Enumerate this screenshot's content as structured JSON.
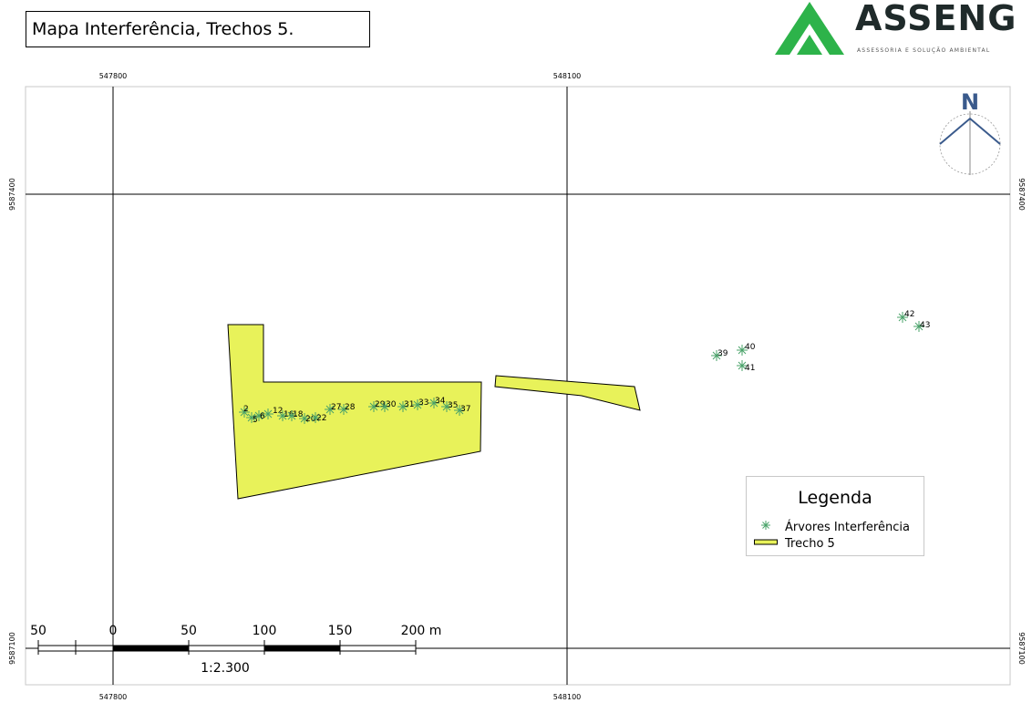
{
  "title": "Mapa Interferência, Trechos 5.",
  "logo": {
    "name": "ASSENG",
    "subtitle": "ASSESSORIA E SOLUÇÃO AMBIENTAL",
    "colors": {
      "green": "#2db34a",
      "dark": "#1f2a2a"
    }
  },
  "grid": {
    "x_labels": [
      "547800",
      "548100"
    ],
    "y_labels": [
      "9587400",
      "9587100"
    ]
  },
  "north_arrow": {
    "label": "N",
    "color": "#3a5a8c"
  },
  "trees": [
    {
      "id": "2"
    },
    {
      "id": "5"
    },
    {
      "id": "6"
    },
    {
      "id": "12"
    },
    {
      "id": "16"
    },
    {
      "id": "18"
    },
    {
      "id": "20"
    },
    {
      "id": "22"
    },
    {
      "id": "27"
    },
    {
      "id": "28"
    },
    {
      "id": "29"
    },
    {
      "id": "30"
    },
    {
      "id": "31"
    },
    {
      "id": "33"
    },
    {
      "id": "34"
    },
    {
      "id": "35"
    },
    {
      "id": "37"
    },
    {
      "id": "39"
    },
    {
      "id": "40"
    },
    {
      "id": "41"
    },
    {
      "id": "42"
    },
    {
      "id": "43"
    }
  ],
  "scale_bar": {
    "labels": [
      "50",
      "0",
      "50",
      "100",
      "150",
      "200 m"
    ],
    "ratio": "1:2.300"
  },
  "legend": {
    "title": "Legenda",
    "items": [
      {
        "label": "Árvores Interferência",
        "symbol": "tree-icon",
        "color": "#4aa36a"
      },
      {
        "label": "Trecho 5",
        "symbol": "polygon-swatch",
        "color": "#e8f25a"
      }
    ]
  },
  "colors": {
    "polygon_fill": "#e8f25a",
    "grid_line": "#000000",
    "tree": "#4aa36a"
  }
}
